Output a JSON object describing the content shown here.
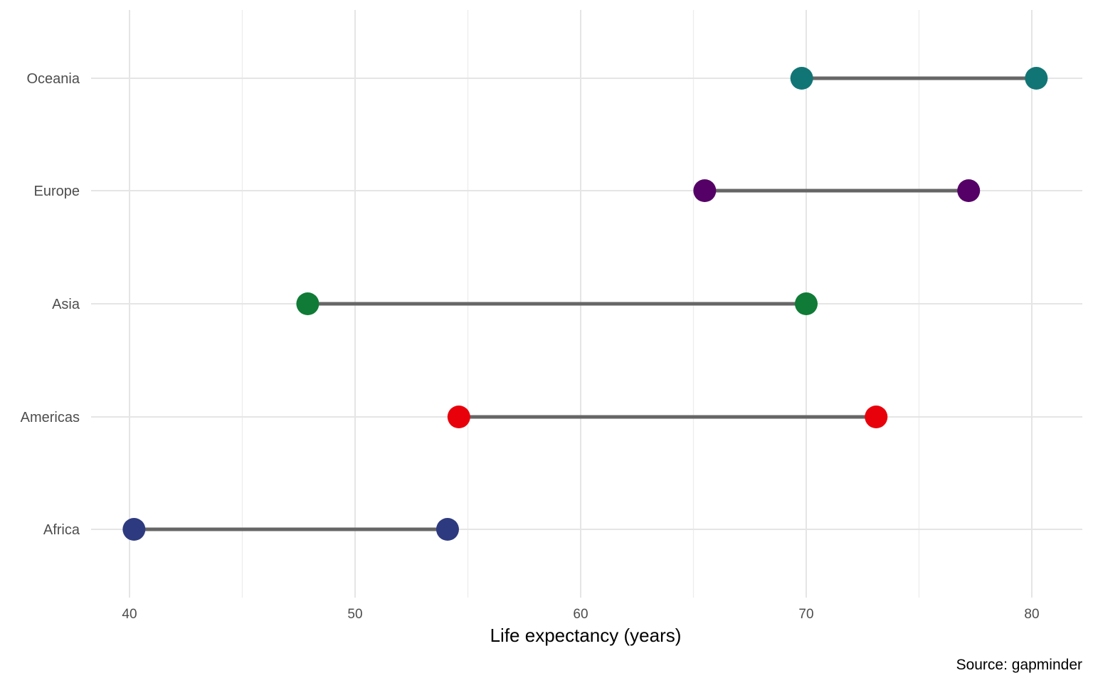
{
  "chart_data": {
    "type": "dumbbell",
    "xlabel": "Life expectancy (years)",
    "caption": "Source: gapminder",
    "xlim": [
      38.1,
      82.2
    ],
    "xticks": [
      40,
      50,
      60,
      70,
      80
    ],
    "categories": [
      "Africa",
      "Americas",
      "Asia",
      "Europe",
      "Oceania"
    ],
    "series": [
      {
        "values": [
          {
            "category": "Africa",
            "low": 40.2,
            "high": 54.1,
            "color": "#2e3a7f"
          },
          {
            "category": "Americas",
            "low": 54.6,
            "high": 73.1,
            "color": "#e8000b"
          },
          {
            "category": "Asia",
            "low": 47.9,
            "high": 70.0,
            "color": "#0f7b36"
          },
          {
            "category": "Europe",
            "low": 65.5,
            "high": 77.2,
            "color": "#540066"
          },
          {
            "category": "Oceania",
            "low": 69.8,
            "high": 80.2,
            "color": "#127575"
          }
        ]
      }
    ],
    "grid": true,
    "legend": "none"
  }
}
